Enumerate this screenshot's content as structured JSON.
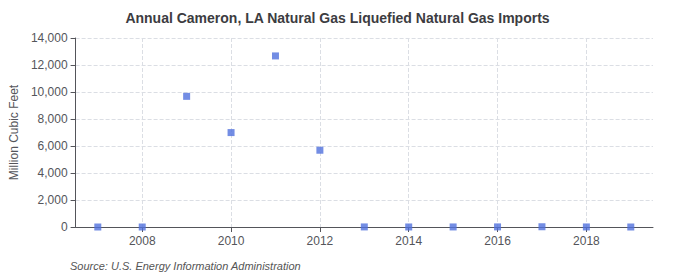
{
  "chart_data": {
    "type": "scatter",
    "title": "Annual Cameron, LA Natural Gas Liquefied Natural Gas Imports",
    "ylabel": "Million Cubic Feet",
    "annotations": [
      "Source: U.S. Energy Information Administration"
    ],
    "x": [
      2007,
      2008,
      2009,
      2010,
      2011,
      2012,
      2013,
      2014,
      2015,
      2016,
      2017,
      2018,
      2019
    ],
    "values": [
      0,
      0,
      9678,
      6994,
      12672,
      5686,
      6,
      3,
      4,
      8,
      19,
      5,
      0
    ],
    "marker": "square",
    "xlim": [
      2006.5,
      2019.5
    ],
    "xticks": [
      2008,
      2010,
      2012,
      2014,
      2016,
      2018
    ],
    "ylim": [
      0,
      14000
    ],
    "yticks": [
      0,
      {
        "value": 2000,
        "label": "2,000"
      },
      {
        "value": 4000,
        "label": "4,000"
      },
      {
        "value": 6000,
        "label": "6,000"
      },
      {
        "value": 8000,
        "label": "8,000"
      },
      {
        "value": 10000,
        "label": "10,000"
      },
      {
        "value": 12000,
        "label": "12,000"
      },
      {
        "value": 14000,
        "label": "14,000"
      }
    ],
    "grid": true
  }
}
